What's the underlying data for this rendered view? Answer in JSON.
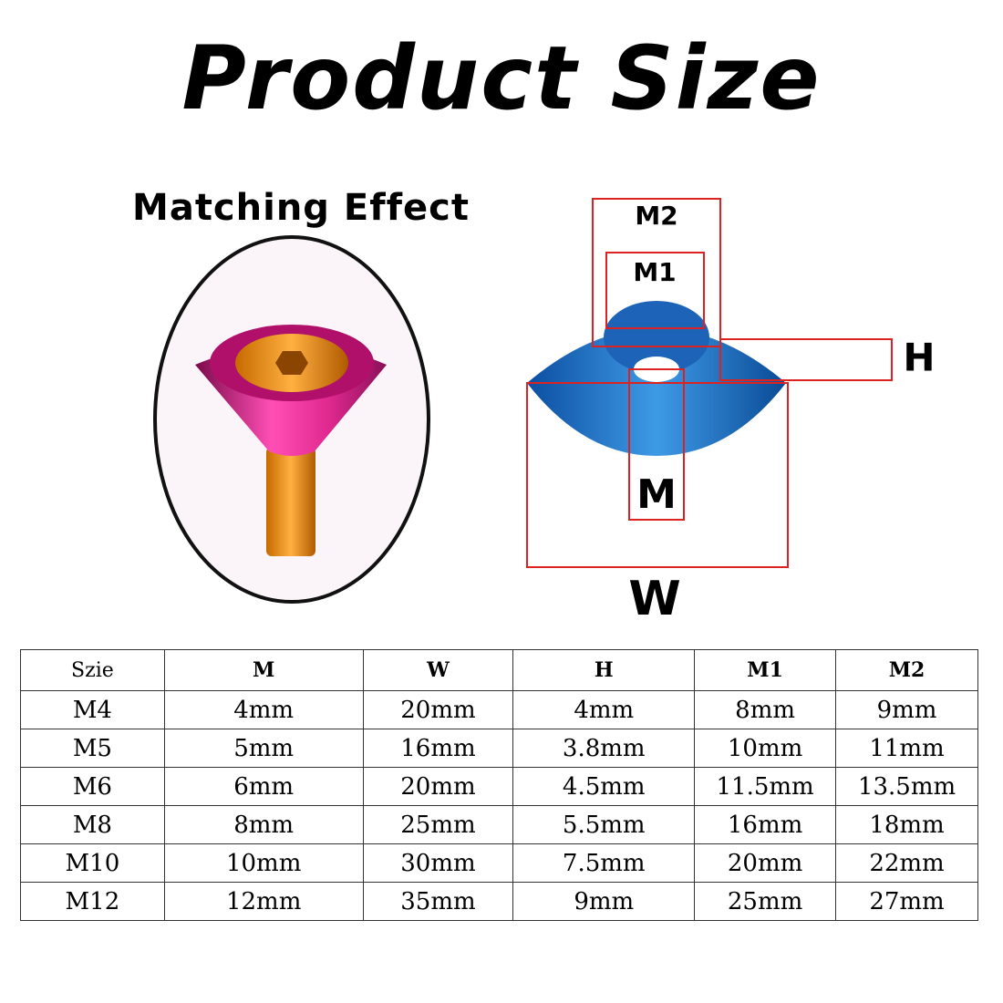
{
  "header": {
    "title": "Product Size"
  },
  "matching_effect": {
    "label": "Matching Effect"
  },
  "diagram": {
    "labels": {
      "m2": "M2",
      "m1": "M1",
      "h": "H",
      "m": "M",
      "w": "W"
    }
  },
  "table": {
    "columns": [
      "Szie",
      "M",
      "W",
      "H",
      "M1",
      "M2"
    ],
    "rows": [
      [
        "M4",
        "4mm",
        "20mm",
        "4mm",
        "8mm",
        "9mm"
      ],
      [
        "M5",
        "5mm",
        "16mm",
        "3.8mm",
        "10mm",
        "11mm"
      ],
      [
        "M6",
        "6mm",
        "20mm",
        "4.5mm",
        "11.5mm",
        "13.5mm"
      ],
      [
        "M8",
        "8mm",
        "25mm",
        "5.5mm",
        "16mm",
        "18mm"
      ],
      [
        "M10",
        "10mm",
        "30mm",
        "7.5mm",
        "20mm",
        "22mm"
      ],
      [
        "M12",
        "12mm",
        "35mm",
        "9mm",
        "25mm",
        "27mm"
      ]
    ]
  }
}
